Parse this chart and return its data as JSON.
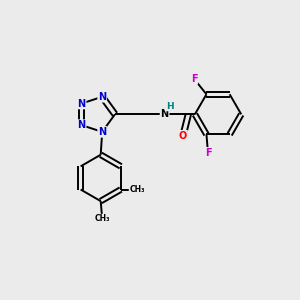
{
  "background_color": "#ebebeb",
  "bond_color": "#000000",
  "N_color": "#0000cc",
  "O_color": "#ff0000",
  "F_color": "#cc00cc",
  "H_color": "#008080",
  "figsize": [
    3.0,
    3.0
  ],
  "dpi": 100,
  "lw": 1.4,
  "fs": 7.0,
  "xlim": [
    0,
    10
  ],
  "ylim": [
    0,
    10
  ]
}
